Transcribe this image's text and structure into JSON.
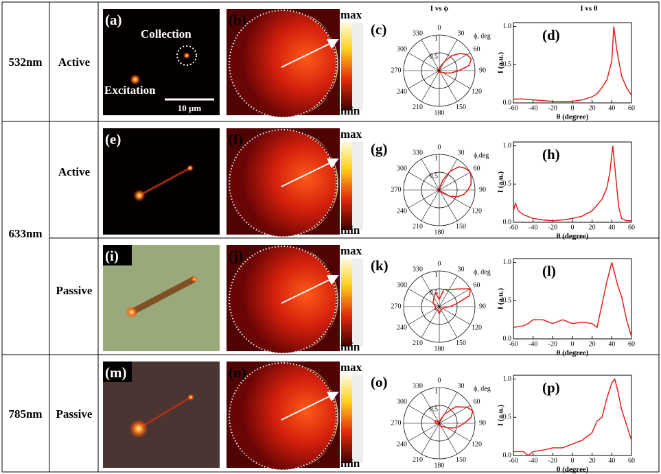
{
  "wavelengths": [
    "532nm",
    "633nm",
    "785nm"
  ],
  "rows": [
    {
      "mode": "Active",
      "panels": [
        "(a)",
        "(b)"
      ],
      "colorbar": [
        "max",
        "min"
      ],
      "annotations": [
        "Collection",
        "Excitation",
        "10 μm"
      ]
    },
    {
      "mode": "Active",
      "panels": [
        "(e)",
        "(f)"
      ],
      "colorbar": [
        "max",
        "min"
      ]
    },
    {
      "mode": "Passive",
      "panels": [
        "(i)",
        "(j)"
      ],
      "colorbar": [
        "max",
        "min"
      ]
    },
    {
      "mode": "Passive",
      "panels": [
        "(m)",
        "(n)"
      ],
      "colorbar": [
        "max",
        "min"
      ]
    }
  ],
  "chart_data": [
    {
      "type": "polar",
      "panel": "(c)",
      "title": "I vs ϕ",
      "angle_label": "ϕ, deg",
      "color": "#e0201b",
      "x": [
        0,
        20,
        30,
        40,
        50,
        60,
        70,
        80,
        90,
        100,
        110,
        120,
        150,
        180,
        210,
        240,
        270,
        300,
        330
      ],
      "values": [
        0.05,
        0.15,
        0.3,
        0.55,
        0.75,
        0.9,
        0.95,
        0.85,
        0.55,
        0.35,
        0.2,
        0.1,
        0.05,
        0.05,
        0.05,
        0.05,
        0.05,
        0.05,
        0.05
      ],
      "xticks": [
        0,
        30,
        60,
        90,
        120,
        150,
        180,
        210,
        240,
        270,
        300,
        330
      ],
      "ylim": [
        0,
        1
      ],
      "yticks": [
        0.5,
        1
      ]
    },
    {
      "type": "line",
      "panel": "(d)",
      "title": "I vs θ",
      "xlabel": "θ (degree)",
      "ylabel": "I (a.u.)",
      "color": "#e0201b",
      "x": [
        -60,
        -50,
        -40,
        -30,
        -20,
        -10,
        0,
        10,
        20,
        25,
        30,
        35,
        40,
        42,
        45,
        50,
        55,
        60
      ],
      "values": [
        0.05,
        0.05,
        0.04,
        0.03,
        0.02,
        0.02,
        0.02,
        0.04,
        0.08,
        0.12,
        0.2,
        0.3,
        0.55,
        1.0,
        0.7,
        0.35,
        0.2,
        0.1
      ],
      "xlim": [
        -60,
        60
      ],
      "xticks": [
        -60,
        -40,
        -20,
        0,
        20,
        40,
        60
      ],
      "ylim": [
        0,
        1.05
      ],
      "yticks": [
        {
          "value": 0,
          "label": "0.0"
        },
        {
          "value": 0.5,
          "label": "0.5"
        },
        {
          "value": 1,
          "label": "1.0"
        }
      ]
    },
    {
      "type": "polar",
      "panel": "(g)",
      "angle_label": "ϕ,deg",
      "color": "#e0201b",
      "x": [
        0,
        20,
        30,
        40,
        50,
        60,
        70,
        80,
        90,
        100,
        110,
        120,
        130,
        150,
        180,
        210,
        240,
        270,
        300,
        330
      ],
      "values": [
        0.05,
        0.3,
        0.6,
        0.85,
        0.95,
        1.0,
        0.95,
        0.9,
        0.8,
        0.7,
        0.55,
        0.35,
        0.15,
        0.05,
        0.05,
        0.05,
        0.05,
        0.05,
        0.05,
        0.05
      ],
      "xticks": [
        0,
        30,
        60,
        90,
        120,
        150,
        180,
        210,
        240,
        270,
        300,
        330
      ],
      "ylim": [
        0,
        1
      ],
      "yticks": [
        0.5,
        1
      ]
    },
    {
      "type": "line",
      "panel": "(h)",
      "xlabel": "θ (degree)",
      "ylabel": "I (a.u.)",
      "color": "#e0201b",
      "x": [
        -60,
        -58,
        -55,
        -50,
        -40,
        -30,
        -20,
        -10,
        0,
        10,
        20,
        30,
        35,
        38,
        41,
        44,
        47,
        50,
        55,
        60
      ],
      "values": [
        0.15,
        0.25,
        0.15,
        0.1,
        0.05,
        0.03,
        0.02,
        0.03,
        0.05,
        0.08,
        0.15,
        0.3,
        0.45,
        0.65,
        1.0,
        0.6,
        0.2,
        0.05,
        0.02,
        0.02
      ],
      "xlim": [
        -60,
        60
      ],
      "xticks": [
        -60,
        -40,
        -20,
        0,
        20,
        40,
        60
      ],
      "ylim": [
        0,
        1.05
      ],
      "yticks": [
        {
          "value": 0,
          "label": "0.0"
        },
        {
          "value": 0.5,
          "label": "0.5"
        },
        {
          "value": 1,
          "label": "1.0"
        }
      ]
    },
    {
      "type": "polar",
      "panel": "(k)",
      "angle_label": "ϕ, deg",
      "color": "#e0201b",
      "x": [
        0,
        15,
        30,
        45,
        60,
        70,
        80,
        90,
        100,
        120,
        150,
        180,
        210,
        240,
        270,
        300,
        330,
        345
      ],
      "values": [
        0.2,
        0.5,
        0.55,
        0.7,
        1.0,
        0.9,
        0.5,
        0.3,
        0.15,
        0.1,
        0.1,
        0.2,
        0.1,
        0.15,
        0.1,
        0.2,
        0.3,
        0.4
      ],
      "xticks": [
        0,
        30,
        60,
        90,
        120,
        150,
        180,
        210,
        240,
        270,
        300,
        330
      ],
      "ylim": [
        0,
        1
      ],
      "yticks": [
        0.5,
        1
      ]
    },
    {
      "type": "line",
      "panel": "(l)",
      "xlabel": "θ (degree)",
      "ylabel": "I (a.u.)",
      "color": "#e0201b",
      "x": [
        -60,
        -50,
        -45,
        -40,
        -30,
        -20,
        -10,
        0,
        10,
        20,
        25,
        30,
        35,
        40,
        43,
        46,
        50,
        55,
        60
      ],
      "values": [
        0.15,
        0.17,
        0.2,
        0.25,
        0.25,
        0.2,
        0.25,
        0.2,
        0.22,
        0.2,
        0.15,
        0.45,
        0.75,
        1.0,
        0.85,
        0.7,
        0.55,
        0.25,
        0.03
      ],
      "xlim": [
        -60,
        60
      ],
      "xticks": [
        -60,
        -40,
        -20,
        0,
        20,
        40,
        60
      ],
      "ylim": [
        0,
        1.05
      ],
      "yticks": [
        {
          "value": 0,
          "label": "0.0"
        },
        {
          "value": 0.5,
          "label": "0.5"
        },
        {
          "value": 1,
          "label": "1.0"
        }
      ]
    },
    {
      "type": "polar",
      "panel": "(o)",
      "angle_label": "ϕ, deg",
      "color": "#e0201b",
      "x": [
        0,
        30,
        45,
        60,
        70,
        80,
        90,
        100,
        110,
        120,
        150,
        180,
        210,
        240,
        270,
        300,
        330
      ],
      "values": [
        0.05,
        0.3,
        0.65,
        0.9,
        1.0,
        0.9,
        0.7,
        0.55,
        0.4,
        0.25,
        0.1,
        0.05,
        0.05,
        0.05,
        0.1,
        0.15,
        0.05
      ],
      "xticks": [
        0,
        30,
        60,
        90,
        120,
        150,
        180,
        210,
        240,
        270,
        300,
        330
      ],
      "ylim": [
        0,
        1
      ],
      "yticks": [
        0.5,
        1
      ]
    },
    {
      "type": "line",
      "panel": "(p)",
      "xlabel": "θ (degree)",
      "ylabel": "I (a.u.)",
      "color": "#e0201b",
      "x": [
        -60,
        -50,
        -45,
        -40,
        -30,
        -20,
        -10,
        0,
        10,
        20,
        25,
        30,
        35,
        40,
        43,
        46,
        50,
        55,
        60
      ],
      "values": [
        0.05,
        0.05,
        0.0,
        0.05,
        0.07,
        0.1,
        0.1,
        0.15,
        0.2,
        0.3,
        0.45,
        0.5,
        0.75,
        0.95,
        1.0,
        0.85,
        0.6,
        0.4,
        0.2
      ],
      "xlim": [
        -60,
        60
      ],
      "xticks": [
        -60,
        -40,
        -20,
        0,
        20,
        40,
        60
      ],
      "ylim": [
        0,
        1.05
      ],
      "yticks": [
        {
          "value": 0,
          "label": "0.0"
        },
        {
          "value": 0.5,
          "label": "0.5"
        },
        {
          "value": 1,
          "label": "1.0"
        }
      ]
    }
  ]
}
